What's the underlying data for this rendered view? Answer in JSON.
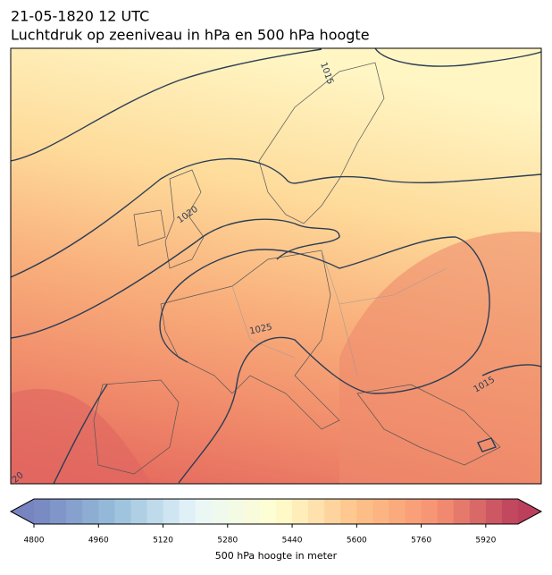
{
  "header": {
    "title_line1": "21-05-1820 12 UTC",
    "title_line2": "Luchtdruk op zeeniveau in hPa en 500 hPa hoogte"
  },
  "map": {
    "contour_labels": [
      1015,
      1020,
      1025,
      1015,
      20
    ]
  },
  "colorbar": {
    "range": [
      4800,
      6000
    ],
    "step": 40,
    "ticks": [
      4800,
      4960,
      5120,
      5280,
      5440,
      5600,
      5760,
      5920
    ],
    "label": "500 hPa hoogte in meter"
  }
}
